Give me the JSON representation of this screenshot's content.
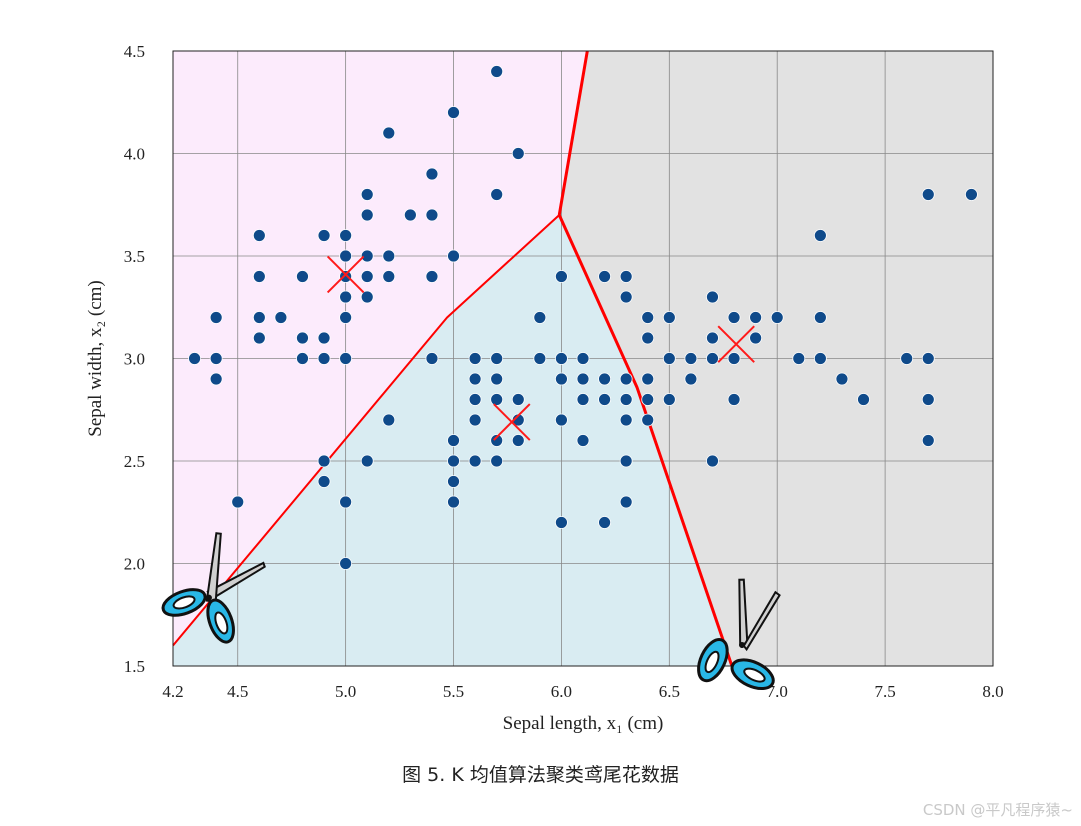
{
  "chart_data": {
    "type": "scatter",
    "xlabel": "Sepal length, x₁ (cm)",
    "ylabel": "Sepal width, x₂ (cm)",
    "xlim": [
      4.2,
      8.0
    ],
    "ylim": [
      1.5,
      4.5
    ],
    "x_ticks": [
      4.2,
      4.5,
      5.0,
      5.5,
      6.0,
      6.5,
      7.0,
      7.5,
      8.0
    ],
    "x_tick_labels": [
      "4.2",
      "4.5",
      "5.0",
      "5.5",
      "6.0",
      "6.5",
      "7.0",
      "7.5",
      "8.0"
    ],
    "y_ticks": [
      1.5,
      2.0,
      2.5,
      3.0,
      3.5,
      4.0,
      4.5
    ],
    "y_tick_labels": [
      "1.5",
      "2.0",
      "2.5",
      "3.0",
      "3.5",
      "4.0",
      "4.5"
    ],
    "grid": true,
    "points": [
      [
        4.3,
        3.0
      ],
      [
        4.4,
        2.9
      ],
      [
        4.4,
        3.0
      ],
      [
        4.4,
        3.2
      ],
      [
        4.5,
        2.3
      ],
      [
        4.6,
        3.1
      ],
      [
        4.6,
        3.2
      ],
      [
        4.6,
        3.4
      ],
      [
        4.6,
        3.6
      ],
      [
        4.7,
        3.2
      ],
      [
        4.8,
        3.0
      ],
      [
        4.8,
        3.1
      ],
      [
        4.8,
        3.4
      ],
      [
        4.9,
        2.4
      ],
      [
        4.9,
        2.5
      ],
      [
        4.9,
        3.0
      ],
      [
        4.9,
        3.1
      ],
      [
        4.9,
        3.6
      ],
      [
        5.0,
        2.0
      ],
      [
        5.0,
        2.3
      ],
      [
        5.0,
        3.0
      ],
      [
        5.0,
        3.2
      ],
      [
        5.0,
        3.3
      ],
      [
        5.0,
        3.4
      ],
      [
        5.0,
        3.5
      ],
      [
        5.0,
        3.6
      ],
      [
        5.1,
        2.5
      ],
      [
        5.1,
        3.3
      ],
      [
        5.1,
        3.4
      ],
      [
        5.1,
        3.5
      ],
      [
        5.1,
        3.7
      ],
      [
        5.1,
        3.8
      ],
      [
        5.2,
        2.7
      ],
      [
        5.2,
        3.4
      ],
      [
        5.2,
        3.5
      ],
      [
        5.2,
        4.1
      ],
      [
        5.3,
        3.7
      ],
      [
        5.4,
        3.0
      ],
      [
        5.4,
        3.4
      ],
      [
        5.4,
        3.7
      ],
      [
        5.4,
        3.9
      ],
      [
        5.5,
        2.3
      ],
      [
        5.5,
        2.4
      ],
      [
        5.5,
        2.5
      ],
      [
        5.5,
        2.6
      ],
      [
        5.5,
        3.5
      ],
      [
        5.5,
        4.2
      ],
      [
        5.6,
        2.5
      ],
      [
        5.6,
        2.7
      ],
      [
        5.6,
        2.8
      ],
      [
        5.6,
        2.9
      ],
      [
        5.6,
        3.0
      ],
      [
        5.7,
        2.5
      ],
      [
        5.7,
        2.6
      ],
      [
        5.7,
        2.8
      ],
      [
        5.7,
        2.9
      ],
      [
        5.7,
        3.0
      ],
      [
        5.7,
        3.8
      ],
      [
        5.7,
        4.4
      ],
      [
        5.8,
        2.6
      ],
      [
        5.8,
        2.7
      ],
      [
        5.8,
        2.8
      ],
      [
        5.8,
        4.0
      ],
      [
        5.9,
        3.0
      ],
      [
        5.9,
        3.2
      ],
      [
        6.0,
        2.2
      ],
      [
        6.0,
        2.7
      ],
      [
        6.0,
        2.9
      ],
      [
        6.0,
        3.0
      ],
      [
        6.0,
        3.4
      ],
      [
        6.1,
        2.6
      ],
      [
        6.1,
        2.8
      ],
      [
        6.1,
        2.9
      ],
      [
        6.1,
        3.0
      ],
      [
        6.2,
        2.2
      ],
      [
        6.2,
        2.8
      ],
      [
        6.2,
        2.9
      ],
      [
        6.2,
        3.4
      ],
      [
        6.3,
        2.3
      ],
      [
        6.3,
        2.5
      ],
      [
        6.3,
        2.7
      ],
      [
        6.3,
        2.8
      ],
      [
        6.3,
        2.9
      ],
      [
        6.3,
        3.3
      ],
      [
        6.3,
        3.4
      ],
      [
        6.4,
        2.7
      ],
      [
        6.4,
        2.8
      ],
      [
        6.4,
        2.9
      ],
      [
        6.4,
        3.1
      ],
      [
        6.4,
        3.2
      ],
      [
        6.5,
        2.8
      ],
      [
        6.5,
        3.0
      ],
      [
        6.5,
        3.2
      ],
      [
        6.6,
        2.9
      ],
      [
        6.6,
        3.0
      ],
      [
        6.7,
        2.5
      ],
      [
        6.7,
        3.0
      ],
      [
        6.7,
        3.1
      ],
      [
        6.7,
        3.3
      ],
      [
        6.8,
        2.8
      ],
      [
        6.8,
        3.0
      ],
      [
        6.8,
        3.2
      ],
      [
        6.9,
        3.1
      ],
      [
        6.9,
        3.2
      ],
      [
        7.0,
        3.2
      ],
      [
        7.1,
        3.0
      ],
      [
        7.2,
        3.0
      ],
      [
        7.2,
        3.2
      ],
      [
        7.2,
        3.6
      ],
      [
        7.3,
        2.9
      ],
      [
        7.4,
        2.8
      ],
      [
        7.6,
        3.0
      ],
      [
        7.7,
        2.6
      ],
      [
        7.7,
        2.8
      ],
      [
        7.7,
        3.0
      ],
      [
        7.7,
        3.8
      ],
      [
        7.9,
        3.8
      ]
    ],
    "centroids": [
      [
        5.0,
        3.41
      ],
      [
        5.77,
        2.69
      ],
      [
        6.81,
        3.07
      ]
    ],
    "boundaries": [
      [
        [
          4.2,
          1.6
        ],
        [
          5.47,
          3.2
        ],
        [
          5.99,
          3.7
        ]
      ],
      [
        [
          5.99,
          3.7
        ],
        [
          6.12,
          4.5
        ]
      ],
      [
        [
          5.99,
          3.7
        ],
        [
          6.35,
          2.86
        ],
        [
          6.79,
          1.5
        ]
      ]
    ],
    "region_colors": {
      "upper_left": "#fcebfc",
      "lower": "#d9ecf2",
      "right": "#e2e2e2"
    },
    "point_color": "#0f4a8a",
    "centroid_color": "#ff1a1a",
    "boundary_color": "#ff0000"
  },
  "caption": "图 5. K 均值算法聚类鸢尾花数据",
  "watermark": "CSDN @平凡程序猿~",
  "icons": [
    "scissors-icon",
    "scissors-icon"
  ]
}
